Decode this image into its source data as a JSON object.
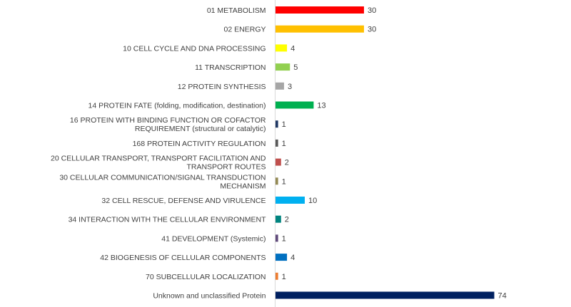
{
  "chart_data": {
    "type": "bar",
    "orientation": "horizontal",
    "title": "",
    "xlabel": "",
    "ylabel": "",
    "grid": false,
    "legend": "none",
    "xlim": [
      0,
      74
    ],
    "categories": [
      [
        "01 METABOLISM"
      ],
      [
        "02 ENERGY"
      ],
      [
        "10 CELL CYCLE AND DNA PROCESSING"
      ],
      [
        "11 TRANSCRIPTION"
      ],
      [
        "12 PROTEIN SYNTHESIS"
      ],
      [
        "14 PROTEIN FATE (folding, modification, destination)"
      ],
      [
        "16 PROTEIN WITH BINDING FUNCTION OR COFACTOR",
        "REQUIREMENT (structural or catalytic)"
      ],
      [
        "168 PROTEIN ACTIVITY REGULATION"
      ],
      [
        "20 CELLULAR TRANSPORT, TRANSPORT FACILITATION AND",
        "TRANSPORT ROUTES"
      ],
      [
        "30 CELLULAR COMMUNICATION/SIGNAL TRANSDUCTION",
        "MECHANISM"
      ],
      [
        "32 CELL RESCUE, DEFENSE AND VIRULENCE"
      ],
      [
        "34 INTERACTION WITH THE CELLULAR ENVIRONMENT"
      ],
      [
        "41 DEVELOPMENT (Systemic)"
      ],
      [
        "42 BIOGENESIS OF CELLULAR COMPONENTS"
      ],
      [
        "70 SUBCELLULAR LOCALIZATION"
      ],
      [
        "Unknown and unclassified Protein"
      ]
    ],
    "values": [
      30,
      30,
      4,
      5,
      3,
      13,
      1,
      1,
      2,
      1,
      10,
      2,
      1,
      4,
      1,
      74
    ],
    "colors": [
      "#ff0000",
      "#ffc000",
      "#ffff00",
      "#92d050",
      "#a6a6a6",
      "#00b050",
      "#1f3864",
      "#595959",
      "#c0504d",
      "#948a54",
      "#00b0f0",
      "#00847f",
      "#604a7b",
      "#0070c0",
      "#ed7d31",
      "#002060"
    ]
  }
}
